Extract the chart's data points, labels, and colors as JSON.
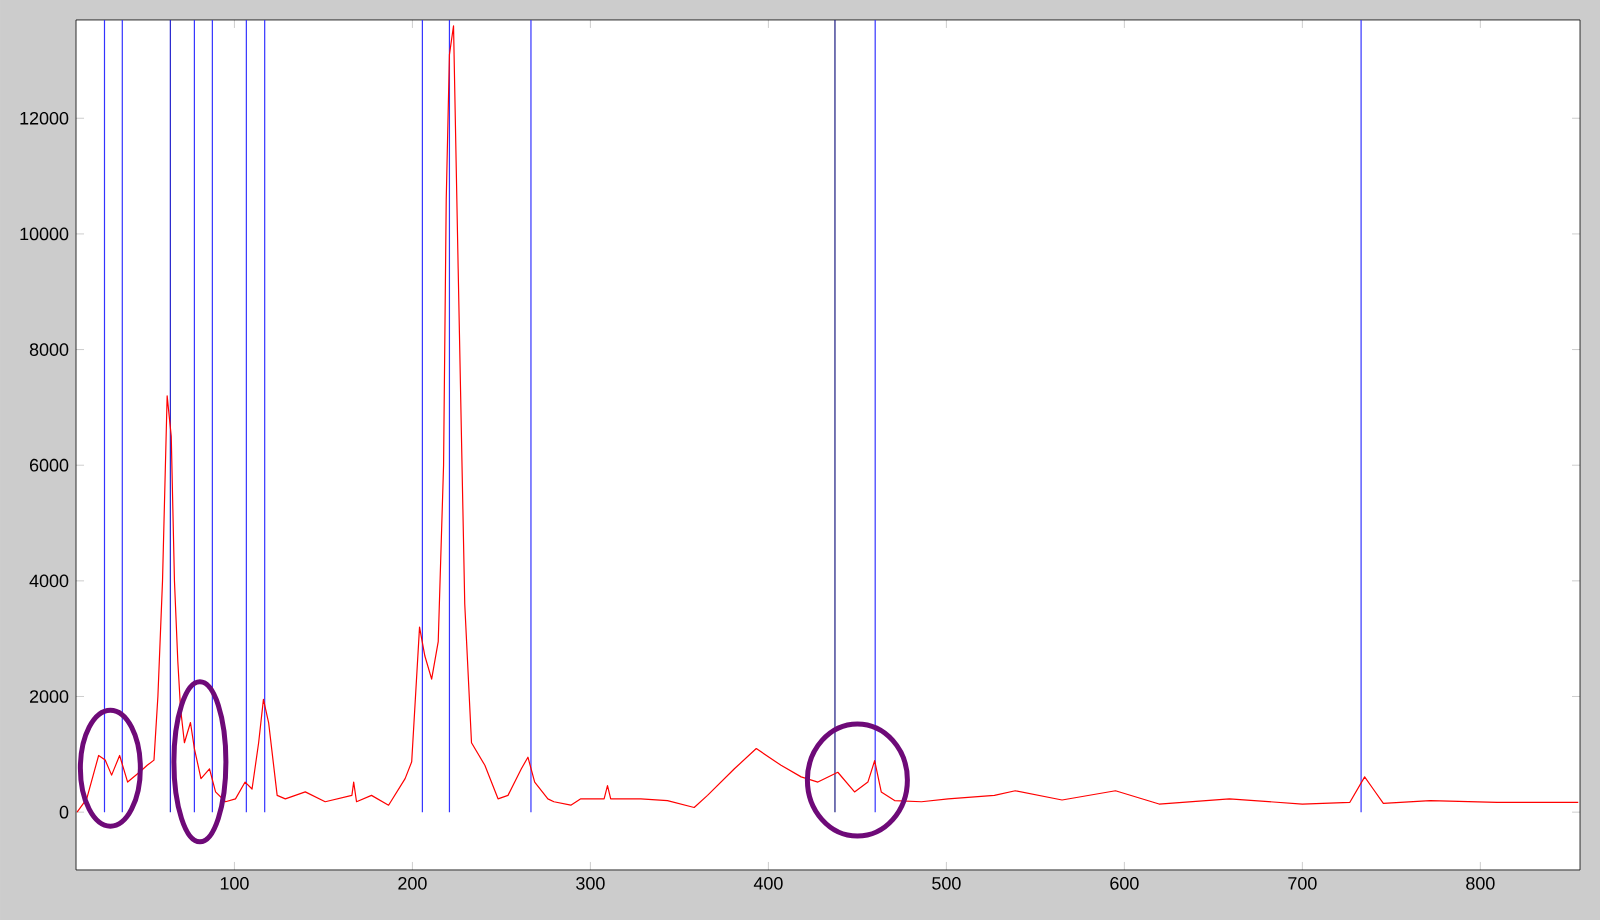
{
  "chart_data": {
    "type": "line",
    "xlim": [
      11,
      856
    ],
    "ylim": [
      -1000,
      13700
    ],
    "xticks": [
      100,
      200,
      300,
      400,
      500,
      600,
      700,
      800
    ],
    "yticks": [
      0,
      2000,
      4000,
      6000,
      8000,
      10000,
      12000
    ],
    "grid": false,
    "marker": "none",
    "line_style": "solid",
    "series": [
      {
        "color": "#ff0000",
        "x": [
          11.6,
          17,
          23.7,
          27.4,
          31,
          35.5,
          40,
          46.6,
          51,
          54.8,
          57,
          59.6,
          62.2,
          64.5,
          66.3,
          68.2,
          69.7,
          71.9,
          75.3,
          77.5,
          81.2,
          86,
          89.4,
          95,
          100.6,
          106,
          109.9,
          113.6,
          116.3,
          119.2,
          124,
          128.6,
          139.8,
          151,
          166,
          167,
          168.6,
          177,
          186.6,
          195.9,
          199.6,
          204,
          207,
          210.8,
          214.5,
          217.5,
          219,
          220.8,
          223.1,
          225.7,
          229.4,
          233.2,
          240.7,
          248.1,
          253.7,
          261.2,
          264.9,
          268.7,
          276.1,
          279.5,
          289,
          294.6,
          307.7,
          309.6,
          311.4,
          328.3,
          343.3,
          358.3,
          365.8,
          380.9,
          393.2,
          407.1,
          418.4,
          427.8,
          439,
          448.4,
          455.9,
          459.7,
          463.4,
          470.9,
          486,
          501,
          527,
          538.7,
          565,
          595,
          619.5,
          659,
          700,
          726.7,
          735,
          739.8,
          745.5,
          771.8,
          809.4,
          855
        ],
        "values": [
          0,
          230,
          980,
          900,
          640,
          980,
          520,
          690,
          810,
          900,
          2000,
          4000,
          7200,
          6500,
          4000,
          2600,
          1800,
          1200,
          1550,
          1100,
          580,
          750,
          350,
          180,
          230,
          520,
          400,
          1200,
          1950,
          1550,
          290,
          230,
          350,
          180,
          290,
          520,
          180,
          290,
          120,
          580,
          870,
          3200,
          2700,
          2300,
          2950,
          6000,
          10600,
          13100,
          13600,
          9400,
          3600,
          1200,
          810,
          230,
          290,
          750,
          950,
          520,
          230,
          180,
          120,
          230,
          230,
          460,
          230,
          230,
          200,
          80,
          290,
          750,
          1100,
          810,
          610,
          520,
          690,
          350,
          520,
          890,
          350,
          200,
          180,
          230,
          290,
          370,
          210,
          370,
          140,
          230,
          140,
          170,
          610,
          400,
          150,
          200,
          170,
          170
        ]
      }
    ],
    "ref_lines": [
      {
        "axis": "x",
        "value": 27,
        "color": "#3333ff"
      },
      {
        "axis": "x",
        "value": 37,
        "color": "#3333ff"
      },
      {
        "axis": "x",
        "value": 64,
        "color": "#2222cc"
      },
      {
        "axis": "x",
        "value": 77.5,
        "color": "#3333ff"
      },
      {
        "axis": "x",
        "value": 87.6,
        "color": "#3333ff"
      },
      {
        "axis": "x",
        "value": 106.7,
        "color": "#3333ff"
      },
      {
        "axis": "x",
        "value": 117,
        "color": "#3333ff"
      },
      {
        "axis": "x",
        "value": 205.6,
        "color": "#3333ff"
      },
      {
        "axis": "x",
        "value": 220.8,
        "color": "#3333ff"
      },
      {
        "axis": "x",
        "value": 266.6,
        "color": "#3333ff"
      },
      {
        "axis": "x",
        "value": 437.4,
        "color": "#1a1a80"
      },
      {
        "axis": "x",
        "value": 460,
        "color": "#3333ff"
      },
      {
        "axis": "x",
        "value": 733,
        "color": "#3333ff"
      }
    ]
  }
}
